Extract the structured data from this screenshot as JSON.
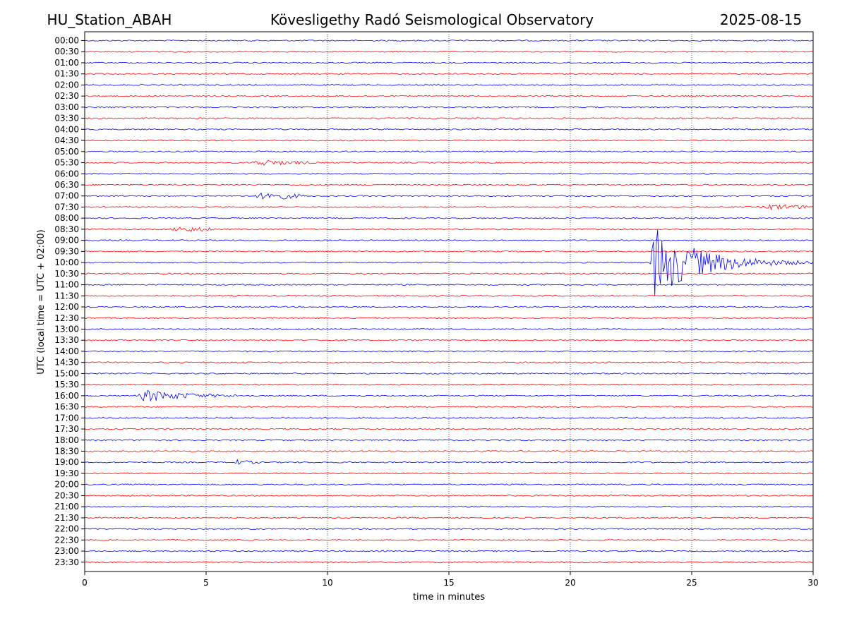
{
  "header": {
    "station": "HU_Station_ABAH",
    "observatory": "Kövesligethy Radó Seismological Observatory",
    "date": "2025-08-15"
  },
  "chart_data": {
    "type": "line",
    "title": "Kövesligethy Radó Seismological Observatory",
    "xlabel": "time in minutes",
    "ylabel": "UTC (local time = UTC + 02:00)",
    "xlim": [
      0,
      30
    ],
    "x_ticks": [
      0,
      5,
      10,
      15,
      20,
      25,
      30
    ],
    "grid": "vertical dotted lines at x ticks",
    "colors": {
      "even_rows": "#0000ff",
      "odd_rows": "#ff0000",
      "grid": "#000000"
    },
    "rows": [
      "00:00",
      "00:30",
      "01:00",
      "01:30",
      "02:00",
      "02:30",
      "03:00",
      "03:30",
      "04:00",
      "04:30",
      "05:00",
      "05:30",
      "06:00",
      "06:30",
      "07:00",
      "07:30",
      "08:00",
      "08:30",
      "09:00",
      "09:30",
      "10:00",
      "10:30",
      "11:00",
      "11:30",
      "12:00",
      "12:30",
      "13:00",
      "13:30",
      "14:00",
      "14:30",
      "15:00",
      "15:30",
      "16:00",
      "16:30",
      "17:00",
      "17:30",
      "18:00",
      "18:30",
      "19:00",
      "19:30",
      "20:00",
      "20:30",
      "21:00",
      "21:30",
      "22:00",
      "22:30",
      "23:00",
      "23:30"
    ],
    "events": [
      {
        "row": "05:30",
        "start": 6.8,
        "peak": 7.2,
        "end": 9.5,
        "amp": 0.28,
        "decay": 1.5
      },
      {
        "row": "07:00",
        "start": 6.9,
        "peak": 7.6,
        "end": 9.0,
        "amp": 0.45,
        "decay": 1.0
      },
      {
        "row": "07:30",
        "start": 27.8,
        "peak": 28.4,
        "end": 30.0,
        "amp": 0.25,
        "decay": 1.5
      },
      {
        "row": "08:30",
        "start": 3.5,
        "peak": 4.0,
        "end": 5.2,
        "amp": 0.28,
        "decay": 1.2
      },
      {
        "row": "10:00",
        "start": 23.3,
        "peak": 23.45,
        "end": 30.0,
        "amp": 3.6,
        "decay": 1.8
      },
      {
        "row": "16:00",
        "start": 2.2,
        "peak": 2.5,
        "end": 7.0,
        "amp": 0.6,
        "decay": 1.6
      },
      {
        "row": "19:00",
        "start": 5.9,
        "peak": 6.2,
        "end": 7.2,
        "amp": 0.22,
        "decay": 0.8
      }
    ]
  }
}
